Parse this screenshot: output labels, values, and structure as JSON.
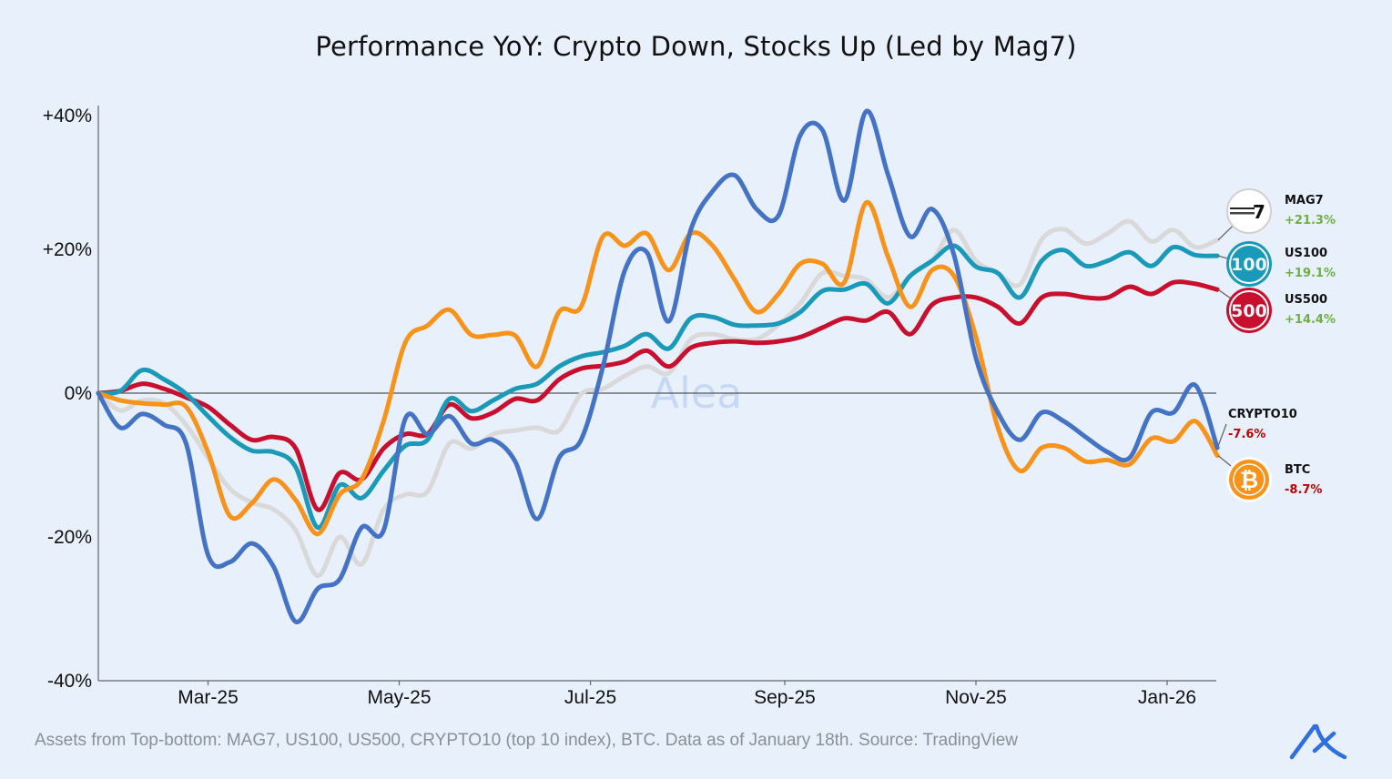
{
  "title": "Performance YoY: Crypto Down, Stocks Up (Led by Mag7)",
  "footer": "Assets from Top-bottom: MAG7, US100, US500, CRYPTO10 (top 10 index), BTC. Data as of January 18th. Source: TradingView",
  "watermark": "Alea",
  "logo": "Alea logo",
  "chart_data": {
    "type": "line",
    "title": "Performance YoY: Crypto Down, Stocks Up (Led by Mag7)",
    "xlabel": "",
    "ylabel": "",
    "ylim": [
      -40,
      40
    ],
    "y_ticks": [
      {
        "value": 40,
        "label": "+40%"
      },
      {
        "value": 20,
        "label": "+20%"
      },
      {
        "value": 0,
        "label": "0%"
      },
      {
        "value": -20,
        "label": "-20%"
      },
      {
        "value": -40,
        "label": "-40%"
      }
    ],
    "x_ticks": [
      {
        "date": "2025-03-01",
        "label": "Mar-25"
      },
      {
        "date": "2025-05-01",
        "label": "May-25"
      },
      {
        "date": "2025-07-01",
        "label": "Jul-25"
      },
      {
        "date": "2025-09-01",
        "label": "Sep-25"
      },
      {
        "date": "2025-11-01",
        "label": "Nov-25"
      },
      {
        "date": "2026-01-01",
        "label": "Jan-26"
      }
    ],
    "grid": false,
    "zero_line": true,
    "legend_placement": "right",
    "x": [
      "2025-01-25",
      "2025-02-01",
      "2025-02-08",
      "2025-02-15",
      "2025-02-22",
      "2025-03-01",
      "2025-03-08",
      "2025-03-15",
      "2025-03-22",
      "2025-03-29",
      "2025-04-05",
      "2025-04-12",
      "2025-04-19",
      "2025-04-26",
      "2025-05-03",
      "2025-05-10",
      "2025-05-17",
      "2025-05-24",
      "2025-05-31",
      "2025-06-07",
      "2025-06-14",
      "2025-06-21",
      "2025-06-28",
      "2025-07-05",
      "2025-07-12",
      "2025-07-19",
      "2025-07-26",
      "2025-08-02",
      "2025-08-09",
      "2025-08-16",
      "2025-08-23",
      "2025-08-30",
      "2025-09-06",
      "2025-09-13",
      "2025-09-20",
      "2025-09-27",
      "2025-10-04",
      "2025-10-11",
      "2025-10-18",
      "2025-10-25",
      "2025-11-01",
      "2025-11-08",
      "2025-11-15",
      "2025-11-22",
      "2025-11-29",
      "2025-12-06",
      "2025-12-13",
      "2025-12-20",
      "2025-12-27",
      "2026-01-03",
      "2026-01-10",
      "2026-01-17"
    ],
    "series": [
      {
        "name": "MAG7",
        "change": "+21.3%",
        "color": "#D9D9D9",
        "change_color": "#70AD47",
        "icon": "magnificent-7-icon",
        "values": [
          0,
          -2.4,
          -1.0,
          -1.4,
          -4.4,
          -9.0,
          -13.3,
          -15.2,
          -16.2,
          -19.1,
          -25.4,
          -20.0,
          -23.8,
          -16.2,
          -14.1,
          -13.7,
          -7.0,
          -7.7,
          -5.7,
          -5.2,
          -4.8,
          -5.2,
          -0.1,
          0.6,
          2.4,
          3.7,
          2.8,
          7.5,
          8.2,
          7.5,
          7.5,
          9.5,
          12.5,
          16.7,
          16.3,
          15.8,
          13.3,
          16.3,
          18.4,
          22.7,
          18.4,
          16.7,
          15.1,
          21.4,
          22.8,
          20.8,
          22.2,
          23.9,
          21.1,
          22.7,
          20.3,
          21.3
        ]
      },
      {
        "name": "US500",
        "change": "+14.4%",
        "color": "#C8102E",
        "change_color": "#70AD47",
        "icon": "us500-icon",
        "values": [
          0,
          0.3,
          1.3,
          0.6,
          -0.6,
          -1.9,
          -4.4,
          -6.5,
          -6.1,
          -7.7,
          -16.2,
          -11.1,
          -12.0,
          -7.7,
          -5.7,
          -5.7,
          -1.6,
          -3.5,
          -2.7,
          -0.8,
          -1.0,
          1.9,
          3.4,
          3.8,
          4.4,
          5.9,
          3.7,
          6.3,
          7.0,
          7.2,
          7.0,
          7.2,
          7.8,
          9.1,
          10.4,
          10.1,
          11.3,
          8.2,
          12.3,
          13.3,
          13.3,
          12.0,
          9.7,
          13.3,
          13.8,
          13.3,
          13.3,
          14.8,
          13.8,
          15.4,
          15.2,
          14.4
        ]
      },
      {
        "name": "US100",
        "change": "+19.1%",
        "color": "#1A9AB8",
        "change_color": "#70AD47",
        "icon": "us100-icon",
        "values": [
          0,
          0.3,
          3.2,
          1.9,
          -0.1,
          -3.2,
          -6.1,
          -8.0,
          -8.2,
          -10.3,
          -18.7,
          -12.8,
          -14.6,
          -10.8,
          -7.3,
          -6.5,
          -0.8,
          -2.5,
          -1.0,
          0.6,
          1.3,
          3.7,
          5.1,
          5.7,
          6.6,
          8.2,
          6.2,
          10.4,
          10.6,
          9.5,
          9.4,
          9.7,
          11.3,
          14.2,
          14.4,
          15.2,
          12.5,
          16.3,
          18.4,
          20.5,
          17.6,
          16.7,
          13.3,
          18.4,
          19.9,
          17.7,
          18.4,
          19.6,
          17.7,
          20.3,
          19.2,
          19.1
        ]
      },
      {
        "name": "BTC",
        "change": "-8.7%",
        "color": "#F7931A",
        "change_color": "#C00000",
        "icon": "bitcoin-icon",
        "values": [
          0,
          -1.0,
          -1.4,
          -1.6,
          -1.9,
          -8.2,
          -17.1,
          -15.3,
          -12.0,
          -14.9,
          -19.6,
          -14.1,
          -12.0,
          -3.9,
          7.1,
          9.4,
          11.6,
          8.1,
          8.1,
          8.0,
          3.7,
          11.3,
          12.0,
          21.8,
          20.5,
          22.2,
          17.1,
          22.2,
          20.5,
          15.8,
          11.3,
          13.8,
          18.0,
          18.0,
          15.4,
          26.5,
          18.9,
          12.0,
          17.1,
          16.3,
          7.8,
          -4.8,
          -10.8,
          -7.6,
          -7.6,
          -9.5,
          -9.3,
          -9.9,
          -6.3,
          -6.7,
          -3.9,
          -8.7
        ]
      },
      {
        "name": "CRYPTO10",
        "change": "-7.6%",
        "color": "#4472C4",
        "change_color": "#C00000",
        "icon": "",
        "values": [
          0,
          -4.8,
          -2.9,
          -4.4,
          -7.0,
          -22.5,
          -23.5,
          -20.9,
          -24.2,
          -31.8,
          -27.2,
          -25.9,
          -18.7,
          -19.1,
          -3.5,
          -5.7,
          -3.2,
          -7.0,
          -6.5,
          -9.5,
          -17.5,
          -9.0,
          -6.5,
          3.7,
          17.1,
          19.6,
          10.0,
          22.7,
          28.1,
          30.3,
          25.6,
          24.7,
          35.9,
          36.6,
          26.8,
          39.2,
          30.3,
          21.8,
          25.6,
          19.2,
          4.9,
          -2.7,
          -6.5,
          -2.7,
          -3.9,
          -6.1,
          -8.2,
          -9.0,
          -2.7,
          -2.7,
          1.1,
          -7.6
        ]
      }
    ]
  }
}
